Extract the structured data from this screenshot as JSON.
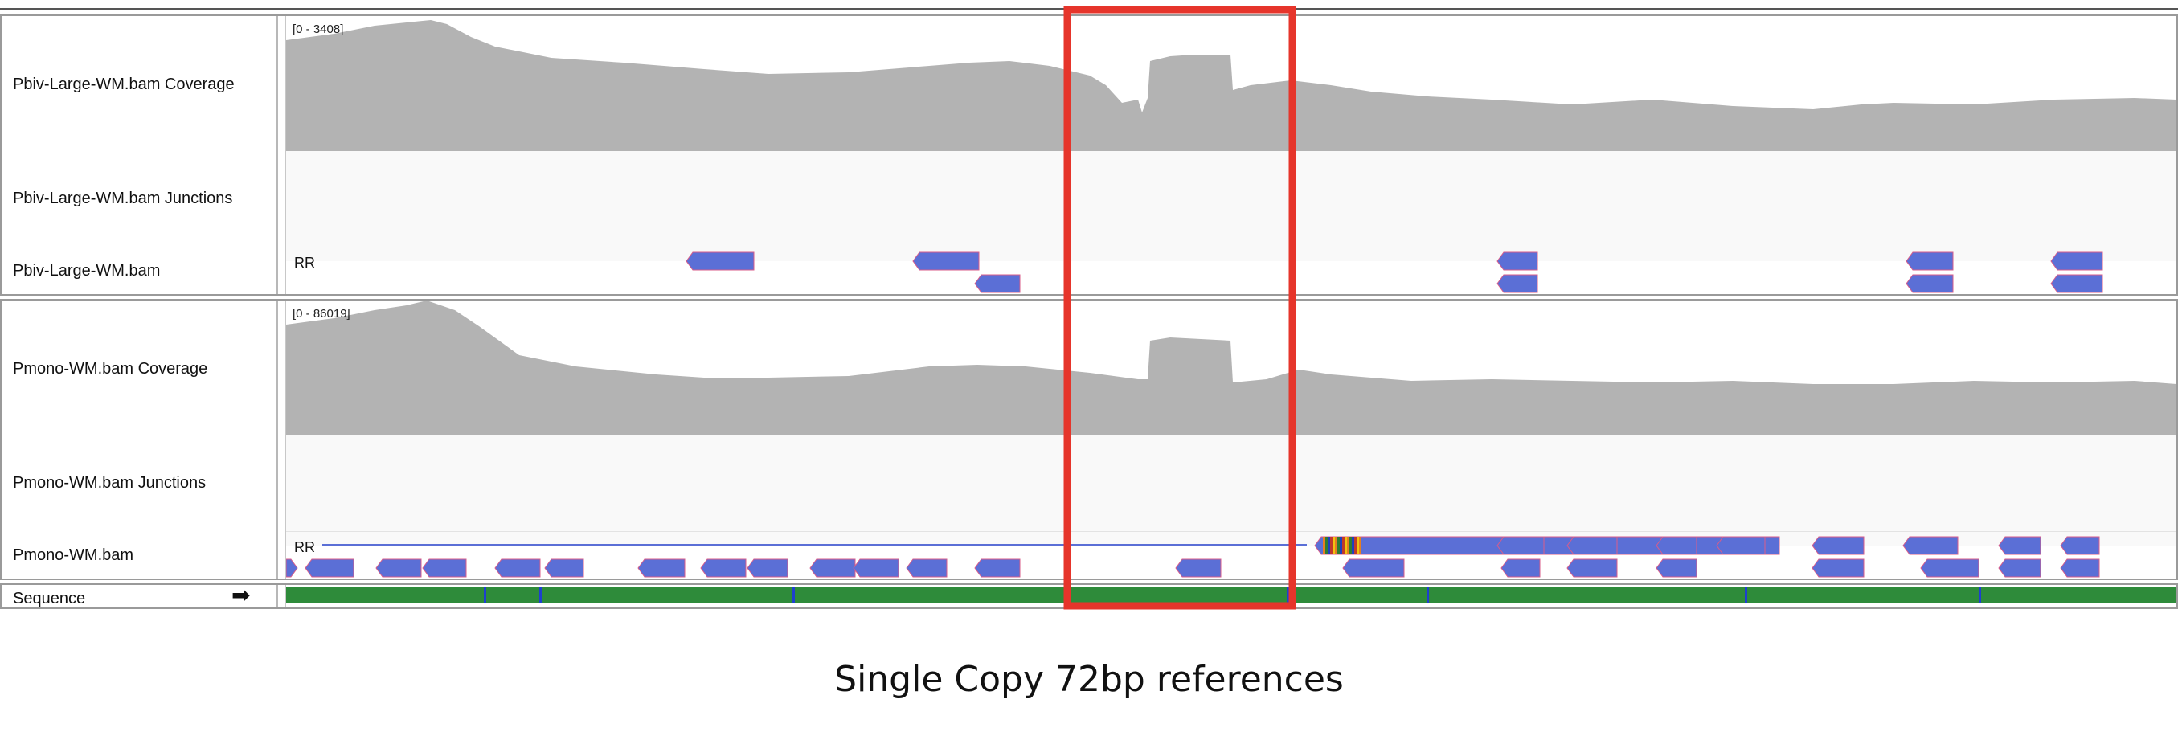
{
  "panels": [
    {
      "coverage_label": "Pbiv-Large-WM.bam Coverage",
      "junctions_label": "Pbiv-Large-WM.bam Junctions",
      "alignment_label": "Pbiv-Large-WM.bam",
      "data_range": "[0 - 3408]",
      "alignment_tag": "RR"
    },
    {
      "coverage_label": "Pmono-WM.bam Coverage",
      "junctions_label": "Pmono-WM.bam Junctions",
      "alignment_label": "Pmono-WM.bam",
      "data_range": "[0 - 86019]",
      "alignment_tag": "RR"
    }
  ],
  "sequence_label": "Sequence",
  "caption": "Single Copy 72bp references",
  "colors": {
    "coverage": "#b3b3b3",
    "read": "#5b6fd6",
    "highlight_box": "#e6352b",
    "panel_border": "#9a9a9a"
  },
  "icons": {
    "strand": "right-arrow-icon"
  }
}
